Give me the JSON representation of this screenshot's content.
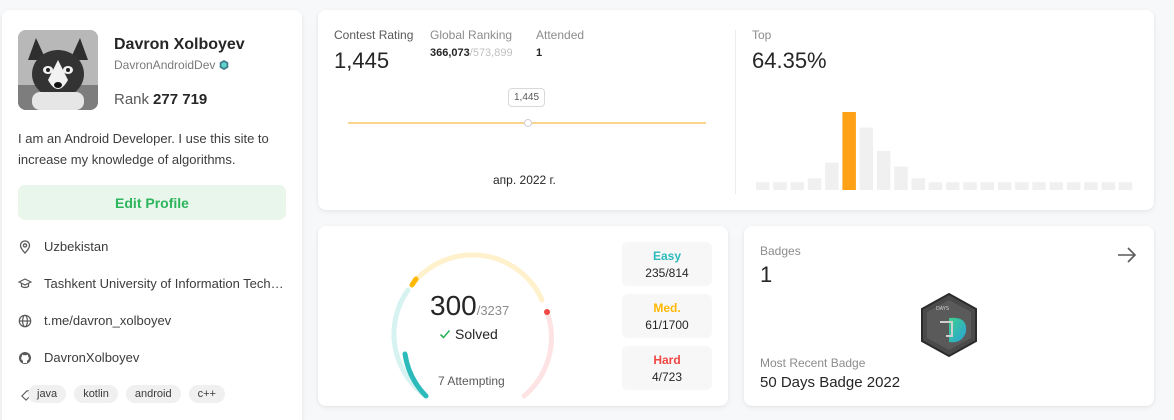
{
  "profile": {
    "name": "Davron Xolboyev",
    "username": "DavronAndroidDev",
    "rank_label": "Rank",
    "rank_value": "277 719",
    "bio": "I am an Android Developer. I use this site to increase my knowledge of algorithms.",
    "edit_label": "Edit Profile",
    "location": "Uzbekistan",
    "school": "Tashkent University of Information Technologies",
    "website": "t.me/davron_xolboyev",
    "github": "DavronXolboyev",
    "tags": [
      "java",
      "kotlin",
      "android",
      "c++"
    ]
  },
  "contest": {
    "rating_label": "Contest Rating",
    "rating_value": "1,445",
    "global_label": "Global Ranking",
    "global_value": "366,073",
    "global_total": "/573,899",
    "attended_label": "Attended",
    "attended_value": "1",
    "tooltip": "1,445",
    "date": "апр. 2022 г.",
    "top_label": "Top",
    "top_value": "64.35%"
  },
  "chart_data": {
    "type": "bar",
    "values": [
      2,
      2,
      2,
      3,
      7,
      20,
      16,
      10,
      6,
      3,
      2,
      2,
      2,
      2,
      2,
      2,
      2,
      2,
      2,
      2,
      2,
      2
    ],
    "highlight_index": 5,
    "colors": {
      "default": "#f0f0f0",
      "highlight": "#ffa116"
    }
  },
  "solved": {
    "solved_value": "300",
    "total": "/3237",
    "solved_label": "Solved",
    "attempting": "7 Attempting",
    "easy_label": "Easy",
    "easy_count": "235/814",
    "medium_label": "Med.",
    "medium_count": "61/1700",
    "hard_label": "Hard",
    "hard_count": "4/723",
    "colors": {
      "easy": "#2cbbba",
      "medium": "#ffb800",
      "hard": "#ef4743"
    }
  },
  "badges": {
    "label": "Badges",
    "count": "1",
    "recent_label": "Most Recent Badge",
    "recent_name": "50 Days Badge 2022",
    "badge_text": "DAYS"
  }
}
